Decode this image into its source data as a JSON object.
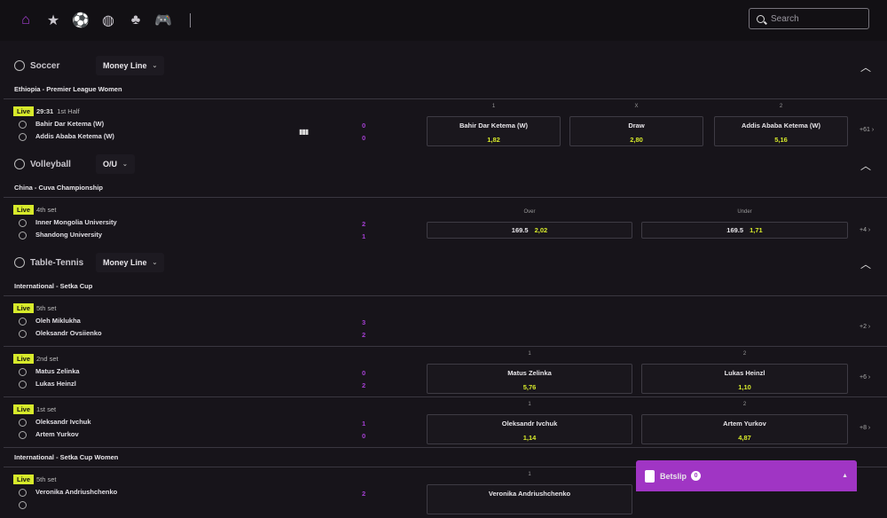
{
  "nav": {
    "items": [
      {
        "icon": "home-icon",
        "glyph": "⌂",
        "active": true
      },
      {
        "icon": "star-icon",
        "glyph": "★"
      },
      {
        "icon": "soccer-icon",
        "glyph": "⚽"
      },
      {
        "icon": "volleyball-icon",
        "glyph": "◍"
      },
      {
        "icon": "table-tennis-icon",
        "glyph": "♣"
      },
      {
        "icon": "gamepad-icon",
        "glyph": "🎮"
      }
    ],
    "search_placeholder": "Search"
  },
  "colors": {
    "accent": "#a035c4",
    "live": "#d7ea2b",
    "odds": "#d7ea2b",
    "score": "#a53fd3"
  },
  "sports": [
    {
      "name": "Soccer",
      "market": "Money Line",
      "icon": "soccer-icon",
      "leagues": [
        {
          "name": "Ethiopia - Premier League Women",
          "events": [
            {
              "time": "29:31",
              "period": "1st Half",
              "stats": true,
              "teams": [
                "Bahir Dar Ketema (W)",
                "Addis Ababa Ketema (W)"
              ],
              "scores": [
                "0",
                "0"
              ],
              "type": "3way",
              "labels": [
                "1",
                "X",
                "2"
              ],
              "odds": [
                {
                  "name": "Bahir Dar Ketema (W)",
                  "price": "1,82"
                },
                {
                  "name": "Draw",
                  "price": "2,80"
                },
                {
                  "name": "Addis Ababa Ketema (W)",
                  "price": "5,16"
                }
              ],
              "more": "+61"
            }
          ]
        }
      ]
    },
    {
      "name": "Volleyball",
      "market": "O/U",
      "icon": "volleyball-icon",
      "leagues": [
        {
          "name": "China - Cuva Championship",
          "events": [
            {
              "period": "4th set",
              "teams": [
                "Inner Mongolia University",
                "Shandong University"
              ],
              "scores": [
                "2",
                "1"
              ],
              "type": "line",
              "labels": [
                "Over",
                "Under"
              ],
              "odds": [
                {
                  "line": "169.5",
                  "price": "2,02"
                },
                {
                  "line": "169.5",
                  "price": "1,71"
                }
              ],
              "more": "+4"
            }
          ]
        }
      ]
    },
    {
      "name": "Table-Tennis",
      "market": "Money Line",
      "icon": "table-tennis-icon",
      "leagues": [
        {
          "name": "International - Setka Cup",
          "events": [
            {
              "period": "5th set",
              "teams": [
                "Oleh Miklukha",
                "Oleksandr Ovsiienko"
              ],
              "scores": [
                "3",
                "2"
              ],
              "type": "none",
              "labels": [],
              "odds": [],
              "more": "+2"
            },
            {
              "period": "2nd set",
              "teams": [
                "Matus Zelinka",
                "Lukas Heinzl"
              ],
              "scores": [
                "0",
                "2"
              ],
              "type": "2way",
              "labels": [
                "1",
                "2"
              ],
              "odds": [
                {
                  "name": "Matus Zelinka",
                  "price": "5,76"
                },
                {
                  "name": "Lukas Heinzl",
                  "price": "1,10"
                }
              ],
              "more": "+6"
            },
            {
              "period": "1st set",
              "teams": [
                "Oleksandr Ivchuk",
                "Artem Yurkov"
              ],
              "scores": [
                "1",
                "0"
              ],
              "type": "2way",
              "labels": [
                "1",
                "2"
              ],
              "odds": [
                {
                  "name": "Oleksandr Ivchuk",
                  "price": "1,14"
                },
                {
                  "name": "Artem Yurkov",
                  "price": "4,87"
                }
              ],
              "more": "+8"
            }
          ]
        },
        {
          "name": "International - Setka Cup Women",
          "events": [
            {
              "period": "5th set",
              "teams": [
                "Veronika Andriushchenko",
                ""
              ],
              "scores": [
                "2",
                ""
              ],
              "type": "2way",
              "labels": [
                "1",
                ""
              ],
              "odds": [
                {
                  "name": "Veronika Andriushchenko",
                  "price": ""
                }
              ],
              "more": ""
            }
          ]
        }
      ]
    }
  ],
  "live_label": "Live",
  "betslip": {
    "label": "Betslip",
    "count": "0"
  }
}
